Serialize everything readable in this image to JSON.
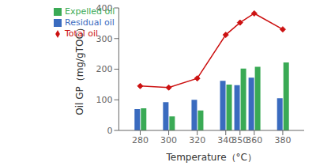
{
  "chart_data": {
    "type": "bar",
    "x": [
      280,
      300,
      320,
      340,
      350,
      360,
      380
    ],
    "xlim": [
      265,
      395
    ],
    "xticks": [
      280,
      300,
      320,
      340,
      350,
      360,
      380
    ],
    "ylim": [
      0,
      400
    ],
    "yticks": [
      0,
      100,
      200,
      300,
      400
    ],
    "xlabel": "Temperature（°C）",
    "ylabel": "Oil GP（mg/gTOC）",
    "grid": false,
    "legend": "upper left",
    "series": [
      {
        "name": "Residual oil",
        "type": "bar",
        "color": "#3a6bbf",
        "values": [
          70,
          92,
          100,
          162,
          148,
          172,
          105
        ]
      },
      {
        "name": "Expelled oil",
        "type": "bar",
        "color": "#3aaa55",
        "values": [
          72,
          46,
          65,
          150,
          202,
          208,
          222
        ]
      },
      {
        "name": "Total oil",
        "type": "line",
        "color": "#cc1111",
        "marker": "diamond",
        "values": [
          145,
          140,
          170,
          312,
          352,
          382,
          330
        ]
      }
    ]
  }
}
